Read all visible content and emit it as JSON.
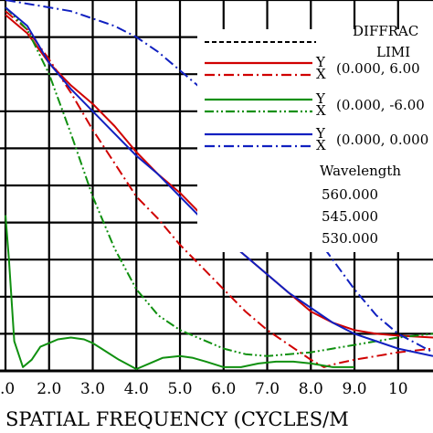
{
  "chart_data": {
    "type": "line",
    "title": "",
    "xlabel": "SPATIAL FREQUENCY (CYCLES/M",
    "ylabel": "",
    "xlim": [
      1.0,
      10.8
    ],
    "ylim": [
      0.0,
      1.0
    ],
    "x_ticks": [
      1.0,
      2.0,
      3.0,
      4.0,
      5.0,
      6.0,
      7.0,
      8.0,
      9.0,
      10.0
    ],
    "x_tick_labels": [
      ".0",
      "2.0",
      "3.0",
      "4.0",
      "5.0",
      "6.0",
      "7.0",
      "8.0",
      "9.0",
      "10"
    ],
    "grid": true,
    "series": [
      {
        "id": "diffraction",
        "color": "#000000",
        "dash": "dashed",
        "x": [
          1.0,
          2.0,
          3.0,
          4.0,
          5.0,
          6.0,
          7.0,
          8.0,
          9.0,
          10.0,
          10.8
        ],
        "y": [
          1.0,
          1.0,
          1.0,
          1.0,
          1.0,
          1.0,
          1.0,
          1.0,
          1.0,
          1.0,
          1.0
        ]
      },
      {
        "id": "field1-y",
        "color": "#d00000",
        "dash": "solid",
        "x": [
          1.0,
          1.5,
          2.0,
          2.5,
          3.0,
          3.5,
          4.0,
          4.5,
          5.0,
          5.5,
          6.0,
          6.5,
          7.0,
          7.5,
          8.0,
          8.5,
          9.0,
          9.5,
          10.0,
          10.8
        ],
        "y": [
          0.96,
          0.91,
          0.83,
          0.77,
          0.72,
          0.66,
          0.59,
          0.53,
          0.48,
          0.42,
          0.36,
          0.31,
          0.26,
          0.21,
          0.16,
          0.13,
          0.11,
          0.1,
          0.095,
          0.09
        ]
      },
      {
        "id": "field1-x",
        "color": "#d00000",
        "dash": "dashdot",
        "x": [
          1.0,
          1.5,
          2.0,
          2.5,
          3.0,
          3.5,
          4.0,
          4.5,
          5.0,
          5.5,
          6.0,
          6.5,
          7.0,
          7.5,
          8.0,
          8.3,
          8.6,
          9.0,
          9.5,
          10.0,
          10.8
        ],
        "y": [
          0.97,
          0.92,
          0.84,
          0.75,
          0.65,
          0.56,
          0.47,
          0.41,
          0.34,
          0.28,
          0.22,
          0.16,
          0.11,
          0.07,
          0.03,
          0.01,
          0.02,
          0.03,
          0.04,
          0.05,
          0.06
        ]
      },
      {
        "id": "field2-y",
        "color": "#109010",
        "dash": "solid",
        "x": [
          1.0,
          1.08,
          1.2,
          1.4,
          1.6,
          1.8,
          2.0,
          2.2,
          2.5,
          2.8,
          3.0,
          3.2,
          3.6,
          4.0,
          4.3,
          4.6,
          5.0,
          5.3,
          5.6,
          6.0,
          6.4,
          6.8,
          7.2,
          7.6,
          8.0,
          8.5,
          9.0
        ],
        "y": [
          0.42,
          0.3,
          0.08,
          0.01,
          0.03,
          0.065,
          0.075,
          0.085,
          0.09,
          0.085,
          0.075,
          0.06,
          0.03,
          0.005,
          0.02,
          0.035,
          0.04,
          0.035,
          0.025,
          0.01,
          0.01,
          0.02,
          0.025,
          0.025,
          0.02,
          0.01,
          0.01
        ]
      },
      {
        "id": "field2-x",
        "color": "#109010",
        "dash": "dashdotdot",
        "x": [
          1.0,
          1.5,
          2.0,
          2.5,
          3.0,
          3.5,
          4.0,
          4.5,
          5.0,
          5.5,
          6.0,
          6.5,
          7.0,
          7.5,
          8.0,
          8.5,
          9.0,
          9.5,
          10.0,
          10.8
        ],
        "y": [
          0.98,
          0.92,
          0.8,
          0.64,
          0.47,
          0.33,
          0.22,
          0.15,
          0.11,
          0.085,
          0.06,
          0.045,
          0.04,
          0.045,
          0.05,
          0.06,
          0.07,
          0.08,
          0.09,
          0.1
        ]
      },
      {
        "id": "field3-y",
        "color": "#1020c0",
        "dash": "solid",
        "x": [
          1.0,
          1.5,
          2.0,
          2.5,
          3.0,
          3.5,
          4.0,
          4.5,
          5.0,
          5.5,
          6.0,
          6.5,
          7.0,
          7.5,
          8.0,
          8.5,
          9.0,
          9.5,
          10.0,
          10.8
        ],
        "y": [
          0.98,
          0.93,
          0.83,
          0.76,
          0.7,
          0.64,
          0.58,
          0.53,
          0.47,
          0.41,
          0.36,
          0.31,
          0.26,
          0.21,
          0.17,
          0.13,
          0.1,
          0.08,
          0.06,
          0.04
        ]
      },
      {
        "id": "field3-x",
        "color": "#1020c0",
        "dash": "dashdot",
        "x": [
          1.0,
          1.5,
          2.0,
          2.5,
          3.0,
          3.5,
          4.0,
          4.5,
          5.0,
          5.5,
          6.0,
          6.5,
          7.0,
          7.5,
          8.0,
          8.5,
          9.0,
          9.5,
          10.0,
          10.8
        ],
        "y": [
          1.0,
          0.99,
          0.98,
          0.97,
          0.95,
          0.93,
          0.9,
          0.86,
          0.81,
          0.76,
          0.7,
          0.63,
          0.55,
          0.47,
          0.38,
          0.3,
          0.22,
          0.15,
          0.1,
          0.05
        ]
      }
    ],
    "legend": {
      "placement": "top-right",
      "header": [
        "DIFFRAC",
        "LIMI"
      ],
      "groups": [
        {
          "y_label": "Y",
          "x_label": "X",
          "field": "(0.000, 6.00"
        },
        {
          "y_label": "Y",
          "x_label": "X",
          "field": "(0.000, -6.00"
        },
        {
          "y_label": "Y",
          "x_label": "X",
          "field": "(0.000, 0.000"
        }
      ],
      "wavelength_title": "Wavelength",
      "wavelengths": [
        "560.000",
        "545.000",
        "530.000"
      ]
    }
  }
}
